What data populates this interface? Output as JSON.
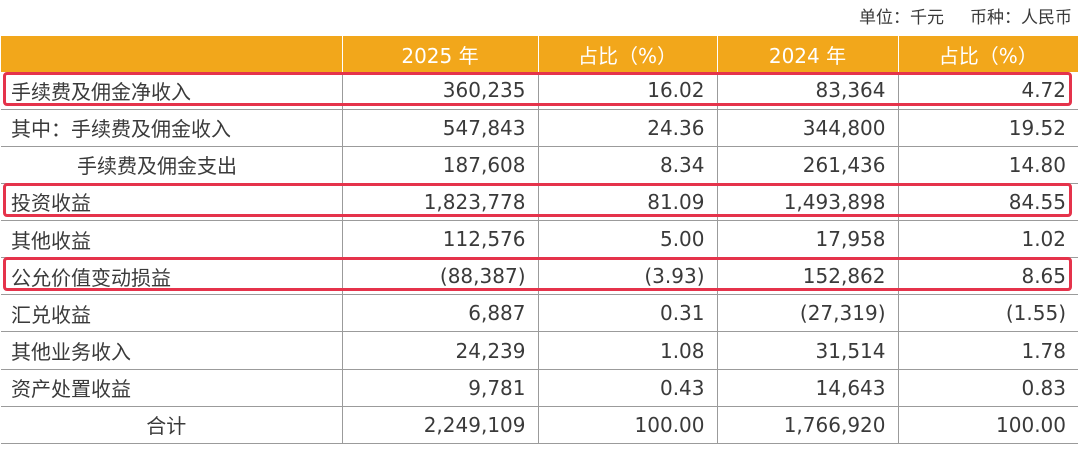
{
  "unit": {
    "currency_unit": "单位：千元",
    "currency": "币种：人民币"
  },
  "table": {
    "headers": [
      "",
      "2025 年",
      "占比（%）",
      "2024 年",
      "占比（%）"
    ],
    "rows": [
      {
        "label": "手续费及佣金净收入",
        "v2025": "360,235",
        "p2025": "16.02",
        "v2024": "83,364",
        "p2024": "4.72",
        "highlighted": true
      },
      {
        "label": "其中：手续费及佣金收入",
        "v2025": "547,843",
        "p2025": "24.36",
        "v2024": "344,800",
        "p2024": "19.52"
      },
      {
        "label": "手续费及佣金支出",
        "v2025": "187,608",
        "p2025": "8.34",
        "v2024": "261,436",
        "p2024": "14.80"
      },
      {
        "label": "投资收益",
        "v2025": "1,823,778",
        "p2025": "81.09",
        "v2024": "1,493,898",
        "p2024": "84.55",
        "highlighted": true
      },
      {
        "label": "其他收益",
        "v2025": "112,576",
        "p2025": "5.00",
        "v2024": "17,958",
        "p2024": "1.02"
      },
      {
        "label": "公允价值变动损益",
        "v2025": "(88,387)",
        "p2025": "(3.93)",
        "v2024": "152,862",
        "p2024": "8.65",
        "highlighted": true
      },
      {
        "label": "汇兑收益",
        "v2025": "6,887",
        "p2025": "0.31",
        "v2024": "(27,319)",
        "p2024": "(1.55)"
      },
      {
        "label": "其他业务收入",
        "v2025": "24,239",
        "p2025": "1.08",
        "v2024": "31,514",
        "p2024": "1.78"
      },
      {
        "label": "资产处置收益",
        "v2025": "9,781",
        "p2025": "0.43",
        "v2024": "14,643",
        "p2024": "0.83"
      },
      {
        "label": "合计",
        "v2025": "2,249,109",
        "p2025": "100.00",
        "v2024": "1,766,920",
        "p2024": "100.00"
      }
    ]
  },
  "colors": {
    "header_bg": "#f2a71b",
    "highlight_border": "#e5334b"
  }
}
